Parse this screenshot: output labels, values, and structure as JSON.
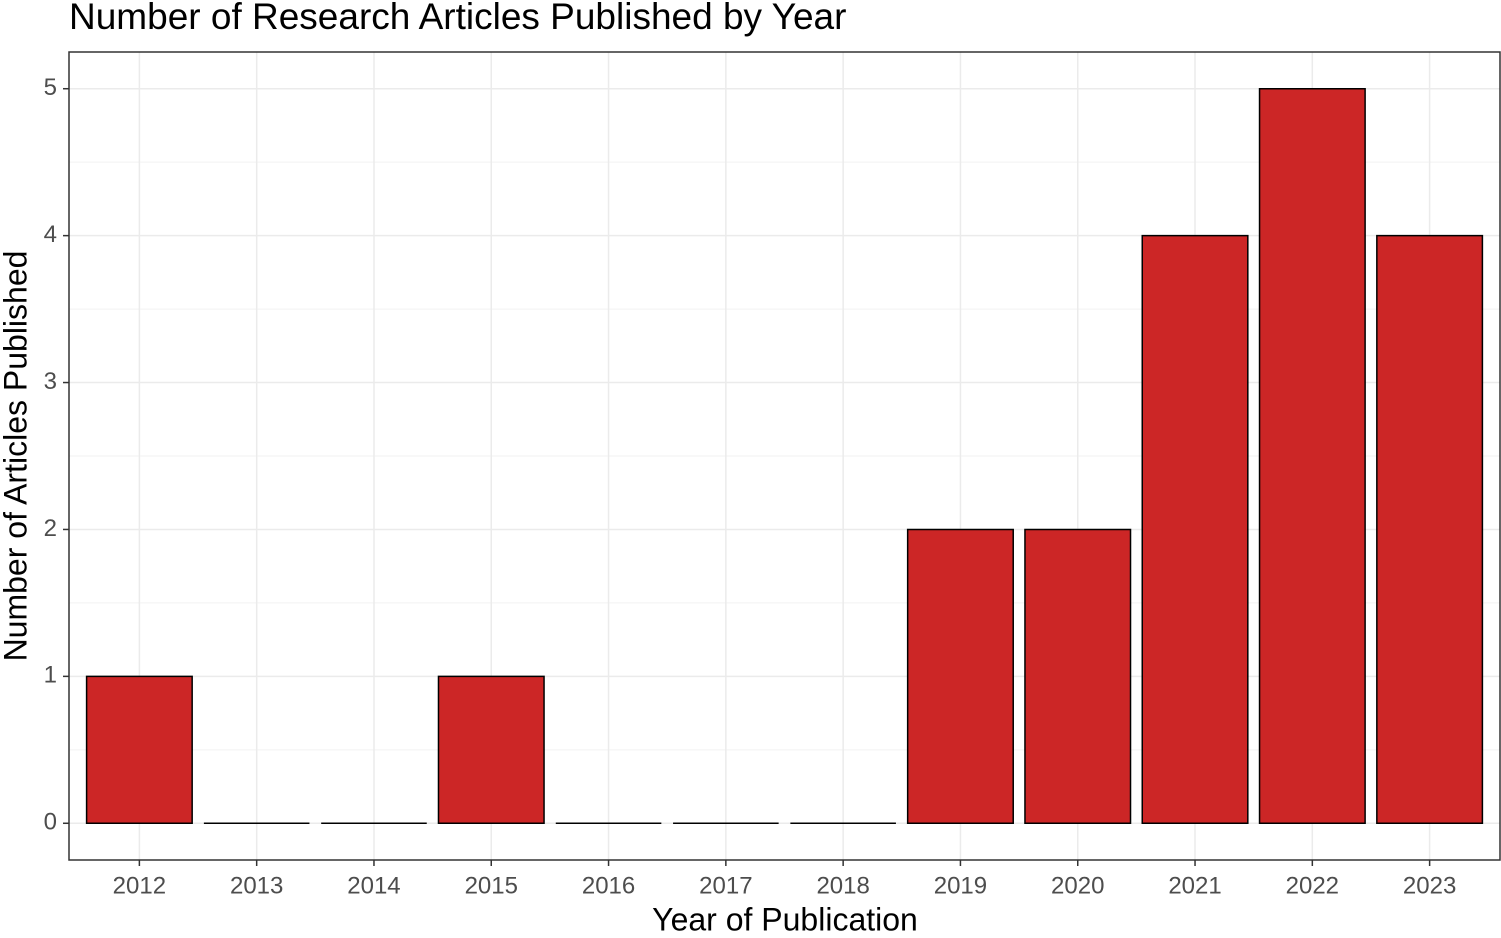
{
  "chart_data": {
    "type": "bar",
    "title": "Number of Research Articles Published by Year",
    "x_label": "Year of Publication",
    "y_label": "Number of Articles Published",
    "categories": [
      "2012",
      "2013",
      "2014",
      "2015",
      "2016",
      "2017",
      "2018",
      "2019",
      "2020",
      "2021",
      "2022",
      "2023"
    ],
    "values": [
      1,
      0,
      0,
      1,
      0,
      0,
      0,
      2,
      2,
      4,
      5,
      4
    ],
    "color": "#cc2626",
    "ylim": [
      -0.25,
      5.25
    ],
    "yticks": [
      0,
      1,
      2,
      3,
      4,
      5
    ],
    "grid": true
  }
}
